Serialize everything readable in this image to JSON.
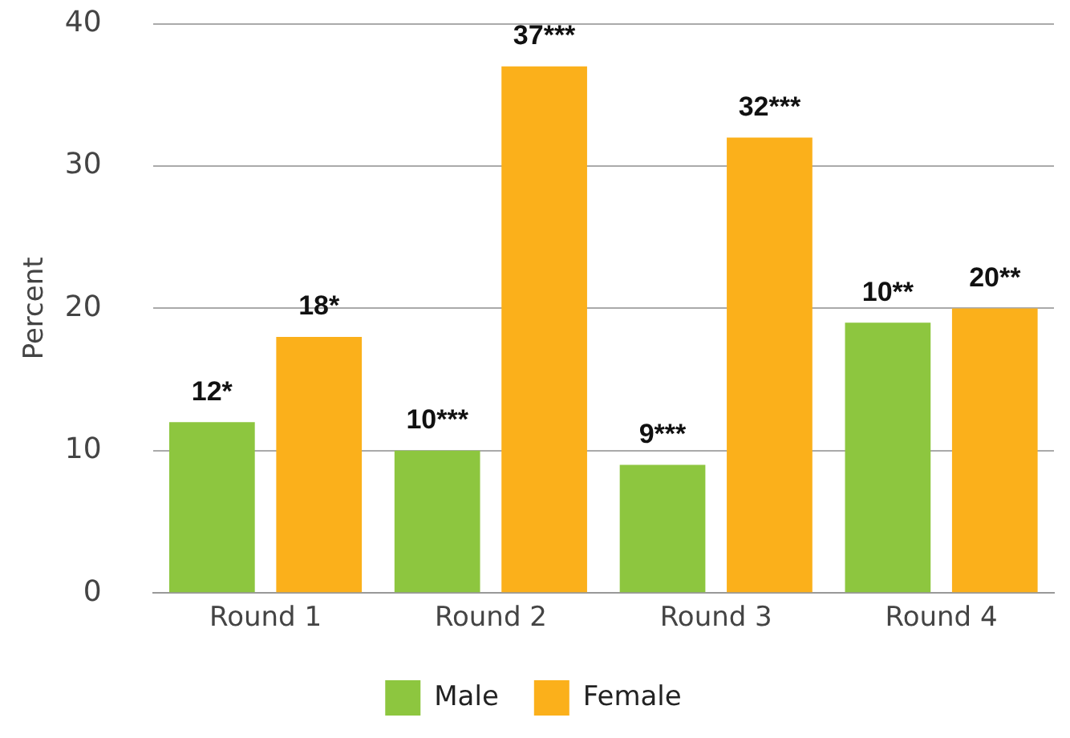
{
  "chart_data": {
    "type": "bar",
    "ylabel": "Percent",
    "categories": [
      "Round 1",
      "Round 2",
      "Round 3",
      "Round 4"
    ],
    "series": [
      {
        "name": "Male",
        "color": "#8dc63f",
        "values": [
          12,
          10,
          9,
          19
        ],
        "value_labels": [
          "12*",
          "10***",
          "9***",
          null
        ]
      },
      {
        "name": "Female",
        "color": "#fbb01b",
        "values": [
          18,
          37,
          32,
          20
        ],
        "value_labels": [
          "18*",
          "37***",
          "32***",
          "20**"
        ]
      }
    ],
    "annotations": [
      "10**"
    ],
    "ylim": [
      0,
      40
    ],
    "yticks": [
      0,
      10,
      20,
      30,
      40
    ],
    "grid": "y",
    "legend": "bottom"
  }
}
